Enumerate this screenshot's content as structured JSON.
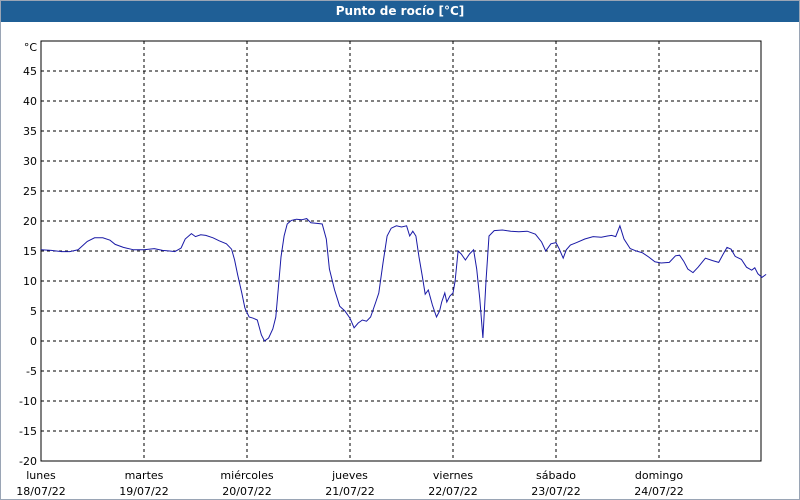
{
  "window": {
    "title": "Punto de rocío [°C]"
  },
  "colors": {
    "title_bar": "#1f5f96",
    "series": "#1a1aa6",
    "grid": "#000000"
  },
  "chart_data": {
    "type": "line",
    "title": "Punto de rocío [°C]",
    "ylabel": "°C",
    "ylim": [
      -20,
      50
    ],
    "yticks": [
      -20,
      -15,
      -10,
      -5,
      0,
      5,
      10,
      15,
      20,
      25,
      30,
      35,
      40,
      45
    ],
    "xlim": [
      0,
      7
    ],
    "grid": true,
    "x_ticks": [
      {
        "x": 0,
        "day": "lunes",
        "date": "18/07/22"
      },
      {
        "x": 1,
        "day": "martes",
        "date": "19/07/22"
      },
      {
        "x": 2,
        "day": "miércoles",
        "date": "20/07/22"
      },
      {
        "x": 3,
        "day": "jueves",
        "date": "21/07/22"
      },
      {
        "x": 4,
        "day": "viernes",
        "date": "22/07/22"
      },
      {
        "x": 5,
        "day": "sábado",
        "date": "23/07/22"
      },
      {
        "x": 6,
        "day": "domingo",
        "date": "24/07/22"
      }
    ],
    "series": [
      {
        "name": "",
        "points": [
          [
            0.0,
            15.2
          ],
          [
            0.1,
            15.1
          ],
          [
            0.2,
            14.9
          ],
          [
            0.28,
            14.9
          ],
          [
            0.36,
            15.2
          ],
          [
            0.45,
            16.6
          ],
          [
            0.52,
            17.2
          ],
          [
            0.6,
            17.2
          ],
          [
            0.67,
            16.8
          ],
          [
            0.72,
            16.1
          ],
          [
            0.8,
            15.6
          ],
          [
            0.9,
            15.2
          ],
          [
            1.0,
            15.2
          ],
          [
            1.1,
            15.4
          ],
          [
            1.18,
            15.1
          ],
          [
            1.25,
            15.0
          ],
          [
            1.3,
            14.9
          ],
          [
            1.36,
            15.5
          ],
          [
            1.4,
            17.0
          ],
          [
            1.46,
            17.9
          ],
          [
            1.5,
            17.4
          ],
          [
            1.55,
            17.7
          ],
          [
            1.6,
            17.6
          ],
          [
            1.67,
            17.2
          ],
          [
            1.73,
            16.7
          ],
          [
            1.8,
            16.2
          ],
          [
            1.85,
            15.3
          ],
          [
            1.88,
            13.5
          ],
          [
            1.91,
            11.0
          ],
          [
            1.95,
            8.0
          ],
          [
            1.98,
            5.5
          ],
          [
            2.02,
            4.0
          ],
          [
            2.06,
            3.8
          ],
          [
            2.1,
            3.5
          ],
          [
            2.14,
            1.0
          ],
          [
            2.17,
            0.0
          ],
          [
            2.21,
            0.5
          ],
          [
            2.25,
            2.0
          ],
          [
            2.28,
            4.0
          ],
          [
            2.3,
            8.0
          ],
          [
            2.33,
            14.0
          ],
          [
            2.36,
            17.5
          ],
          [
            2.39,
            19.5
          ],
          [
            2.43,
            20.1
          ],
          [
            2.48,
            20.3
          ],
          [
            2.53,
            20.2
          ],
          [
            2.58,
            20.4
          ],
          [
            2.62,
            19.7
          ],
          [
            2.68,
            19.6
          ],
          [
            2.73,
            19.5
          ],
          [
            2.77,
            17.0
          ],
          [
            2.8,
            12.0
          ],
          [
            2.85,
            8.5
          ],
          [
            2.9,
            5.8
          ],
          [
            2.95,
            5.0
          ],
          [
            3.0,
            3.8
          ],
          [
            3.04,
            2.2
          ],
          [
            3.08,
            3.0
          ],
          [
            3.12,
            3.5
          ],
          [
            3.16,
            3.3
          ],
          [
            3.2,
            4.0
          ],
          [
            3.25,
            6.5
          ],
          [
            3.28,
            8.0
          ],
          [
            3.32,
            13.0
          ],
          [
            3.36,
            17.5
          ],
          [
            3.4,
            18.8
          ],
          [
            3.45,
            19.2
          ],
          [
            3.5,
            19.0
          ],
          [
            3.55,
            19.2
          ],
          [
            3.58,
            17.5
          ],
          [
            3.61,
            18.3
          ],
          [
            3.64,
            17.5
          ],
          [
            3.67,
            14.0
          ],
          [
            3.7,
            11.0
          ],
          [
            3.73,
            7.8
          ],
          [
            3.76,
            8.5
          ],
          [
            3.8,
            6.0
          ],
          [
            3.84,
            4.0
          ],
          [
            3.87,
            5.0
          ],
          [
            3.89,
            6.5
          ],
          [
            3.92,
            8.0
          ],
          [
            3.94,
            6.5
          ],
          [
            3.97,
            7.5
          ],
          [
            4.0,
            8.0
          ],
          [
            4.02,
            10.0
          ],
          [
            4.05,
            15.0
          ],
          [
            4.08,
            14.5
          ],
          [
            4.12,
            13.5
          ],
          [
            4.16,
            14.5
          ],
          [
            4.2,
            15.2
          ],
          [
            4.23,
            12.0
          ],
          [
            4.26,
            7.0
          ],
          [
            4.29,
            0.5
          ],
          [
            4.32,
            10.0
          ],
          [
            4.35,
            17.5
          ],
          [
            4.4,
            18.4
          ],
          [
            4.48,
            18.5
          ],
          [
            4.56,
            18.3
          ],
          [
            4.64,
            18.2
          ],
          [
            4.72,
            18.3
          ],
          [
            4.8,
            17.8
          ],
          [
            4.86,
            16.5
          ],
          [
            4.9,
            15.0
          ],
          [
            4.95,
            16.2
          ],
          [
            5.0,
            16.4
          ],
          [
            5.03,
            15.4
          ],
          [
            5.07,
            13.8
          ],
          [
            5.1,
            15.2
          ],
          [
            5.14,
            16.0
          ],
          [
            5.2,
            16.4
          ],
          [
            5.28,
            17.0
          ],
          [
            5.36,
            17.4
          ],
          [
            5.44,
            17.3
          ],
          [
            5.5,
            17.5
          ],
          [
            5.54,
            17.6
          ],
          [
            5.58,
            17.4
          ],
          [
            5.62,
            19.2
          ],
          [
            5.66,
            17.0
          ],
          [
            5.72,
            15.4
          ],
          [
            5.78,
            15.0
          ],
          [
            5.84,
            14.7
          ],
          [
            5.9,
            14.0
          ],
          [
            5.96,
            13.2
          ],
          [
            6.02,
            13.0
          ],
          [
            6.1,
            13.1
          ],
          [
            6.16,
            14.2
          ],
          [
            6.2,
            14.3
          ],
          [
            6.24,
            13.3
          ],
          [
            6.28,
            12.0
          ],
          [
            6.33,
            11.4
          ],
          [
            6.38,
            12.3
          ],
          [
            6.45,
            13.8
          ],
          [
            6.52,
            13.4
          ],
          [
            6.58,
            13.1
          ],
          [
            6.62,
            14.4
          ],
          [
            6.66,
            15.6
          ],
          [
            6.7,
            15.3
          ],
          [
            6.74,
            14.1
          ],
          [
            6.8,
            13.6
          ],
          [
            6.85,
            12.3
          ],
          [
            6.9,
            11.8
          ],
          [
            6.93,
            12.2
          ],
          [
            6.96,
            11.2
          ],
          [
            7.0,
            10.6
          ],
          [
            7.04,
            11.1
          ]
        ]
      }
    ]
  }
}
